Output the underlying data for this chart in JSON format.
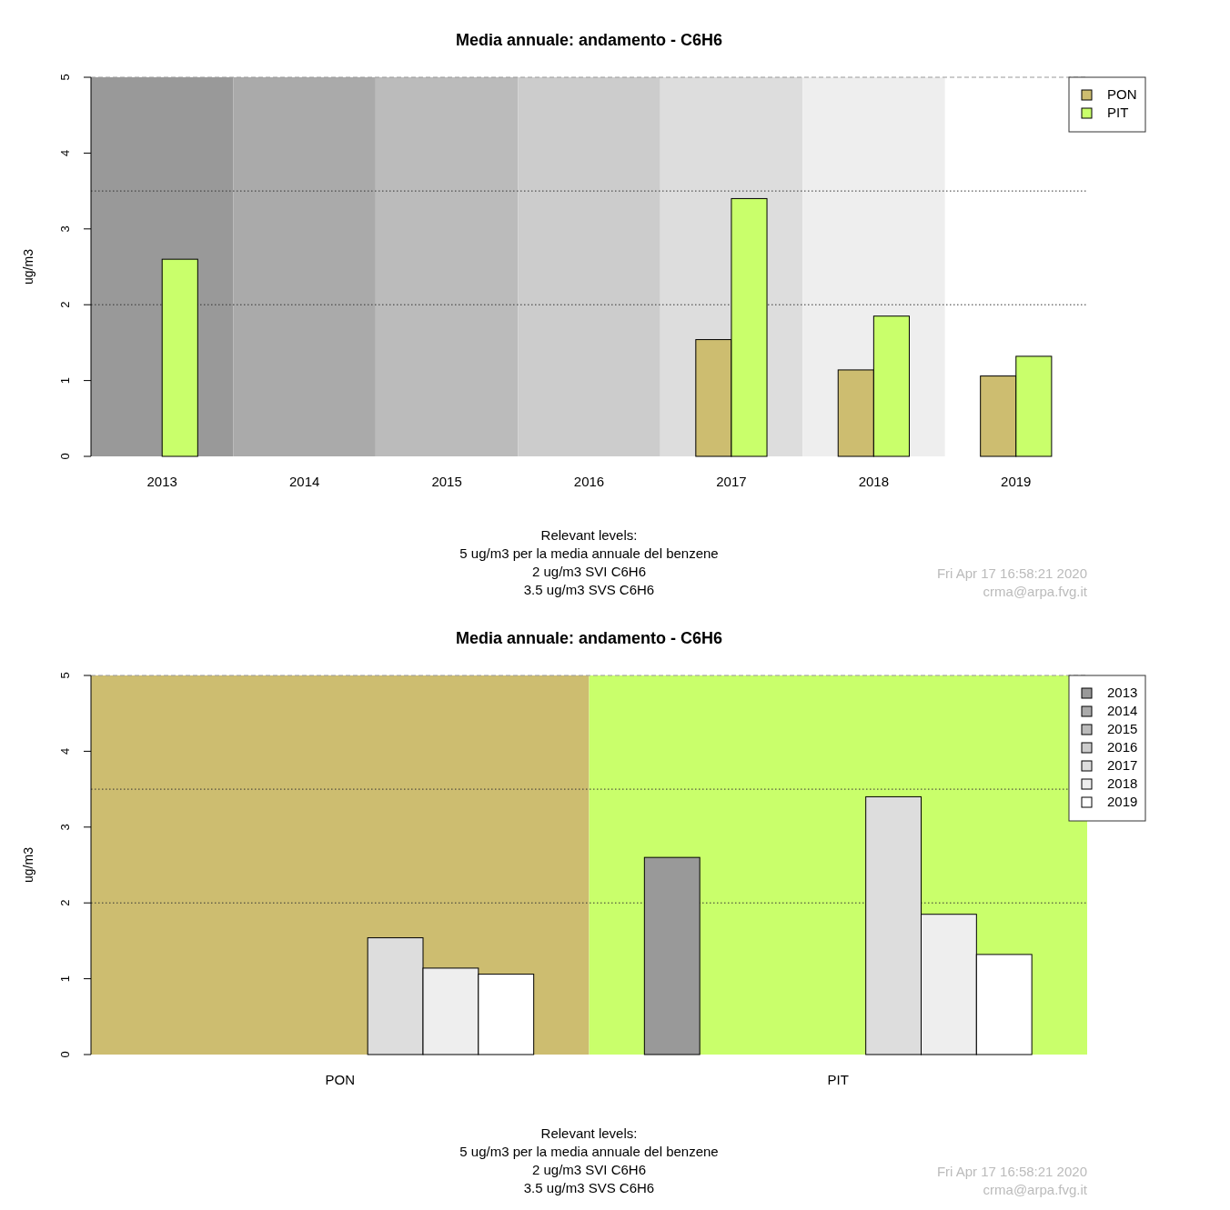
{
  "chart_data": [
    {
      "type": "bar",
      "title": "Media annuale: andamento - C6H6",
      "ylabel": "ug/m3",
      "categories": [
        "2013",
        "2014",
        "2015",
        "2016",
        "2017",
        "2018",
        "2019"
      ],
      "series": [
        {
          "name": "PON",
          "color": "#cdbd70",
          "values": [
            null,
            null,
            null,
            null,
            1.54,
            1.14,
            1.06
          ]
        },
        {
          "name": "PIT",
          "color": "#c9ff6b",
          "values": [
            2.6,
            null,
            null,
            null,
            3.4,
            1.85,
            1.32
          ]
        }
      ],
      "ylim": [
        0,
        5
      ],
      "yticks": [
        0,
        1,
        2,
        3,
        4,
        5
      ],
      "legend": "top right",
      "bands": [
        {
          "axis": "x",
          "from": "2013",
          "to": "2013",
          "color": "#999999"
        },
        {
          "axis": "x",
          "from": "2014",
          "to": "2014",
          "color": "#aaaaaa"
        },
        {
          "axis": "x",
          "from": "2015",
          "to": "2015",
          "color": "#bbbbbb"
        },
        {
          "axis": "x",
          "from": "2016",
          "to": "2016",
          "color": "#cccccc"
        },
        {
          "axis": "x",
          "from": "2017",
          "to": "2017",
          "color": "#dddddd"
        },
        {
          "axis": "x",
          "from": "2018",
          "to": "2018",
          "color": "#eeeeee"
        }
      ],
      "ref_lines": [
        {
          "axis": "y",
          "value": 5,
          "color": "#999999",
          "line_style": "dashed"
        },
        {
          "axis": "y",
          "value": 3.5,
          "color": "#333333",
          "line_style": "dotted"
        },
        {
          "axis": "y",
          "value": 2,
          "color": "#333333",
          "line_style": "dotted"
        }
      ],
      "annotations": [
        "Relevant levels:",
        "5 ug/m3 per la media annuale del benzene",
        "2 ug/m3 SVI C6H6",
        "3.5 ug/m3 SVS C6H6",
        "Fri Apr 17 16:58:21 2020",
        "crma@arpa.fvg.it"
      ]
    },
    {
      "type": "bar",
      "title": "Media annuale: andamento - C6H6",
      "ylabel": "ug/m3",
      "categories": [
        "PON",
        "PIT"
      ],
      "series": [
        {
          "name": "2013",
          "color": "#999999",
          "values": [
            null,
            2.6
          ]
        },
        {
          "name": "2014",
          "color": "#aaaaaa",
          "values": [
            null,
            null
          ]
        },
        {
          "name": "2015",
          "color": "#bbbbbb",
          "values": [
            null,
            null
          ]
        },
        {
          "name": "2016",
          "color": "#cccccc",
          "values": [
            null,
            null
          ]
        },
        {
          "name": "2017",
          "color": "#dddddd",
          "values": [
            1.54,
            3.4
          ]
        },
        {
          "name": "2018",
          "color": "#eeeeee",
          "values": [
            1.14,
            1.85
          ]
        },
        {
          "name": "2019",
          "color": "#ffffff",
          "values": [
            1.06,
            1.32
          ]
        }
      ],
      "ylim": [
        0,
        5
      ],
      "yticks": [
        0,
        1,
        2,
        3,
        4,
        5
      ],
      "legend": "top right",
      "bands": [
        {
          "axis": "x",
          "from": "PON",
          "to": "PON",
          "color": "#cdbd70"
        },
        {
          "axis": "x",
          "from": "PIT",
          "to": "PIT",
          "color": "#c9ff6b"
        }
      ],
      "ref_lines": [
        {
          "axis": "y",
          "value": 5,
          "color": "#999999",
          "line_style": "dashed"
        },
        {
          "axis": "y",
          "value": 3.5,
          "color": "#333333",
          "line_style": "dotted"
        },
        {
          "axis": "y",
          "value": 2,
          "color": "#333333",
          "line_style": "dotted"
        }
      ],
      "annotations": [
        "Relevant levels:",
        "5 ug/m3 per la media annuale del benzene",
        "2 ug/m3 SVI C6H6",
        "3.5 ug/m3 SVS C6H6",
        "Fri Apr 17 16:58:21 2020",
        "crma@arpa.fvg.it"
      ]
    }
  ]
}
